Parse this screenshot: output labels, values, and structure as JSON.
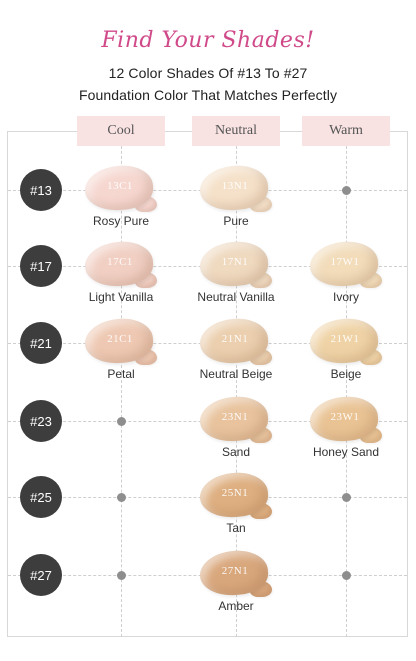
{
  "header": {
    "script_title": "Find Your Shades!",
    "line1": "12 Color Shades Of #13 To #27",
    "line2": "Foundation Color That Matches Perfectly"
  },
  "columns": [
    "Cool",
    "Neutral",
    "Warm"
  ],
  "rows": [
    "#13",
    "#17",
    "#21",
    "#23",
    "#25",
    "#27"
  ],
  "shades": [
    {
      "code": "13C1",
      "name": "Rosy Pure",
      "row": 0,
      "col": 0,
      "color": "#f6d7d0"
    },
    {
      "code": "13N1",
      "name": "Pure",
      "row": 0,
      "col": 1,
      "color": "#f5e1c9"
    },
    {
      "code": "17C1",
      "name": "Light Vanilla",
      "row": 1,
      "col": 0,
      "color": "#f1cfc3"
    },
    {
      "code": "17N1",
      "name": "Neutral Vanilla",
      "row": 1,
      "col": 1,
      "color": "#efd9bf"
    },
    {
      "code": "17W1",
      "name": "Ivory",
      "row": 1,
      "col": 2,
      "color": "#f2dcba"
    },
    {
      "code": "21C1",
      "name": "Petal",
      "row": 2,
      "col": 0,
      "color": "#eec8b2"
    },
    {
      "code": "21N1",
      "name": "Neutral Beige",
      "row": 2,
      "col": 1,
      "color": "#ebcfae"
    },
    {
      "code": "21W1",
      "name": "Beige",
      "row": 2,
      "col": 2,
      "color": "#efd3a6"
    },
    {
      "code": "23N1",
      "name": "Sand",
      "row": 3,
      "col": 1,
      "color": "#e8c39d"
    },
    {
      "code": "23W1",
      "name": "Honey Sand",
      "row": 3,
      "col": 2,
      "color": "#e9c394"
    },
    {
      "code": "25N1",
      "name": "Tan",
      "row": 4,
      "col": 1,
      "color": "#deaf80"
    },
    {
      "code": "27N1",
      "name": "Amber",
      "row": 5,
      "col": 1,
      "color": "#d9a77c"
    }
  ],
  "empty_cells": [
    {
      "row": 0,
      "col": 2
    },
    {
      "row": 3,
      "col": 0
    },
    {
      "row": 4,
      "col": 0
    },
    {
      "row": 4,
      "col": 2
    },
    {
      "row": 5,
      "col": 0
    },
    {
      "row": 5,
      "col": 2
    }
  ]
}
